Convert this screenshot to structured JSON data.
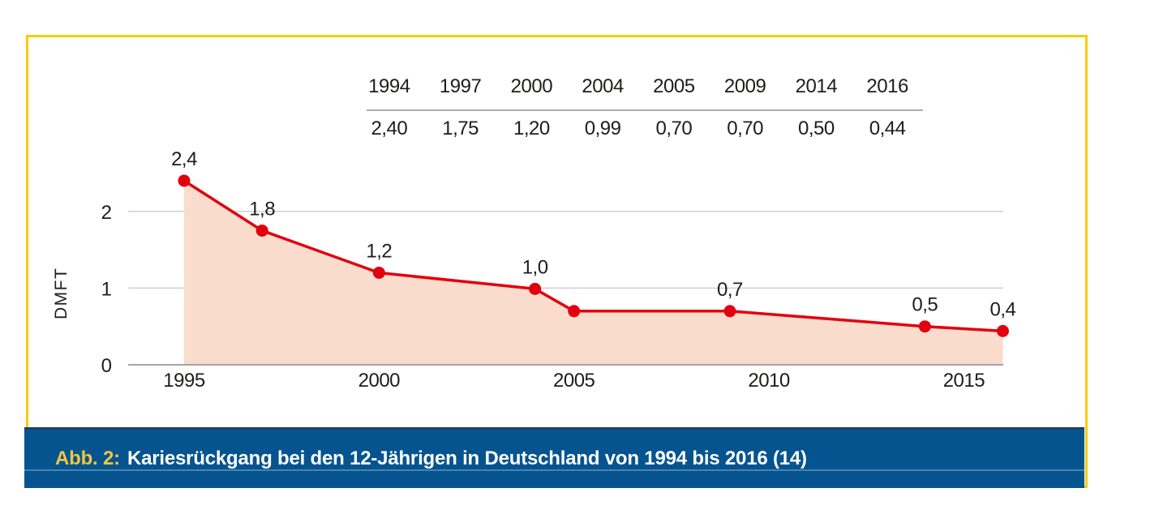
{
  "figure": {
    "caption": {
      "label": "Abb. 2:",
      "text": "Kariesrückgang bei den 12-Jährigen in Deutschland von 1994 bis 2016 (14)"
    },
    "colors": {
      "frame_yellow": "#fbcb09",
      "caption_blue": "#05548f",
      "caption_blue_dark": "#1d3e66",
      "caption_label_yellow": "#f1c63f",
      "line_red": "#e2000f",
      "area_pink": "#fadccd",
      "grid_gray": "#cdd1d4",
      "axis_gray": "#a0a5a9",
      "table_rule_gray": "#ababab",
      "text_dark": "#1d1d1b"
    }
  },
  "chart_data": {
    "type": "line",
    "title": "",
    "xlabel": "",
    "ylabel": "DMFT",
    "series": [
      {
        "name": "DMFT",
        "x": [
          1994,
          1997,
          2000,
          2004,
          2005,
          2009,
          2014,
          2016
        ],
        "x_plot": [
          1995,
          1997,
          2000,
          2004,
          2005,
          2009,
          2014,
          2016
        ],
        "values": [
          2.4,
          1.75,
          1.2,
          0.99,
          0.7,
          0.7,
          0.5,
          0.44
        ]
      }
    ],
    "point_labels": [
      "2,4",
      "1,8",
      "1,2",
      "1,0",
      "",
      "0,7",
      "0,5",
      "0,4"
    ],
    "table": {
      "years": [
        "1994",
        "1997",
        "2000",
        "2004",
        "2005",
        "2009",
        "2014",
        "2016"
      ],
      "values": [
        "2,40",
        "1,75",
        "1,20",
        "0,99",
        "0,70",
        "0,70",
        "0,50",
        "0,44"
      ]
    },
    "x_ticks": [
      1995,
      2000,
      2005,
      2010,
      2015
    ],
    "y_ticks": [
      0,
      1,
      2
    ],
    "xlim": [
      1993.5,
      2016
    ],
    "ylim": [
      0,
      2.5
    ],
    "grid": "horizontal-only",
    "legend": "none",
    "area_fill": true,
    "markers": "filled-circle"
  }
}
